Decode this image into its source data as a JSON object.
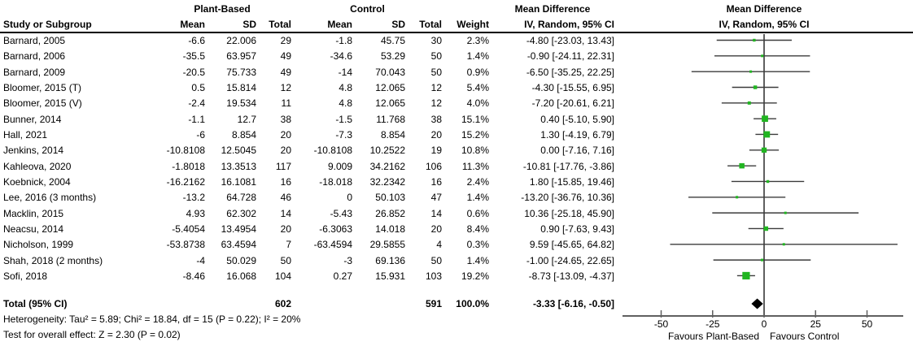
{
  "header": {
    "study_col": "Study or Subgroup",
    "group_plant_based": "Plant-Based",
    "group_control": "Control",
    "mean": "Mean",
    "sd": "SD",
    "total": "Total",
    "weight": "Weight",
    "md_text_title": "Mean Difference",
    "md_text_sub": "IV, Random, 95% CI",
    "md_plot_title": "Mean Difference",
    "md_plot_sub": "IV, Random, 95% CI"
  },
  "chart_data": {
    "type": "forest",
    "effect_measure": "Mean Difference, IV, Random, 95% CI",
    "studies": [
      {
        "name": "Barnard, 2005",
        "pb_mean": "-6.6",
        "pb_sd": "22.006",
        "pb_total": "29",
        "c_mean": "-1.8",
        "c_sd": "45.75",
        "c_total": "30",
        "weight": "2.3%",
        "ci_text": "-4.80 [-23.03, 13.43]",
        "md": -4.8,
        "ci_low": -23.03,
        "ci_high": 13.43,
        "weight_pct": 2.3
      },
      {
        "name": "Barnard, 2006",
        "pb_mean": "-35.5",
        "pb_sd": "63.957",
        "pb_total": "49",
        "c_mean": "-34.6",
        "c_sd": "53.29",
        "c_total": "50",
        "weight": "1.4%",
        "ci_text": "-0.90 [-24.11, 22.31]",
        "md": -0.9,
        "ci_low": -24.11,
        "ci_high": 22.31,
        "weight_pct": 1.4
      },
      {
        "name": "Barnard, 2009",
        "pb_mean": "-20.5",
        "pb_sd": "75.733",
        "pb_total": "49",
        "c_mean": "-14",
        "c_sd": "70.043",
        "c_total": "50",
        "weight": "0.9%",
        "ci_text": "-6.50 [-35.25, 22.25]",
        "md": -6.5,
        "ci_low": -35.25,
        "ci_high": 22.25,
        "weight_pct": 0.9
      },
      {
        "name": "Bloomer, 2015 (T)",
        "pb_mean": "0.5",
        "pb_sd": "15.814",
        "pb_total": "12",
        "c_mean": "4.8",
        "c_sd": "12.065",
        "c_total": "12",
        "weight": "5.4%",
        "ci_text": "-4.30 [-15.55, 6.95]",
        "md": -4.3,
        "ci_low": -15.55,
        "ci_high": 6.95,
        "weight_pct": 5.4
      },
      {
        "name": "Bloomer, 2015 (V)",
        "pb_mean": "-2.4",
        "pb_sd": "19.534",
        "pb_total": "11",
        "c_mean": "4.8",
        "c_sd": "12.065",
        "c_total": "12",
        "weight": "4.0%",
        "ci_text": "-7.20 [-20.61, 6.21]",
        "md": -7.2,
        "ci_low": -20.61,
        "ci_high": 6.21,
        "weight_pct": 4.0
      },
      {
        "name": "Bunner, 2014",
        "pb_mean": "-1.1",
        "pb_sd": "12.7",
        "pb_total": "38",
        "c_mean": "-1.5",
        "c_sd": "11.768",
        "c_total": "38",
        "weight": "15.1%",
        "ci_text": "0.40 [-5.10, 5.90]",
        "md": 0.4,
        "ci_low": -5.1,
        "ci_high": 5.9,
        "weight_pct": 15.1
      },
      {
        "name": "Hall, 2021",
        "pb_mean": "-6",
        "pb_sd": "8.854",
        "pb_total": "20",
        "c_mean": "-7.3",
        "c_sd": "8.854",
        "c_total": "20",
        "weight": "15.2%",
        "ci_text": "1.30 [-4.19, 6.79]",
        "md": 1.3,
        "ci_low": -4.19,
        "ci_high": 6.79,
        "weight_pct": 15.2
      },
      {
        "name": "Jenkins, 2014",
        "pb_mean": "-10.8108",
        "pb_sd": "12.5045",
        "pb_total": "20",
        "c_mean": "-10.8108",
        "c_sd": "10.2522",
        "c_total": "19",
        "weight": "10.8%",
        "ci_text": "0.00 [-7.16, 7.16]",
        "md": 0.0,
        "ci_low": -7.16,
        "ci_high": 7.16,
        "weight_pct": 10.8
      },
      {
        "name": "Kahleova, 2020",
        "pb_mean": "-1.8018",
        "pb_sd": "13.3513",
        "pb_total": "117",
        "c_mean": "9.009",
        "c_sd": "34.2162",
        "c_total": "106",
        "weight": "11.3%",
        "ci_text": "-10.81 [-17.76, -3.86]",
        "md": -10.81,
        "ci_low": -17.76,
        "ci_high": -3.86,
        "weight_pct": 11.3
      },
      {
        "name": "Koebnick, 2004",
        "pb_mean": "-16.2162",
        "pb_sd": "16.1081",
        "pb_total": "16",
        "c_mean": "-18.018",
        "c_sd": "32.2342",
        "c_total": "16",
        "weight": "2.4%",
        "ci_text": "1.80 [-15.85, 19.46]",
        "md": 1.8,
        "ci_low": -15.85,
        "ci_high": 19.46,
        "weight_pct": 2.4
      },
      {
        "name": "Lee, 2016 (3 months)",
        "pb_mean": "-13.2",
        "pb_sd": "64.728",
        "pb_total": "46",
        "c_mean": "0",
        "c_sd": "50.103",
        "c_total": "47",
        "weight": "1.4%",
        "ci_text": "-13.20 [-36.76, 10.36]",
        "md": -13.2,
        "ci_low": -36.76,
        "ci_high": 10.36,
        "weight_pct": 1.4
      },
      {
        "name": "Macklin, 2015",
        "pb_mean": "4.93",
        "pb_sd": "62.302",
        "pb_total": "14",
        "c_mean": "-5.43",
        "c_sd": "26.852",
        "c_total": "14",
        "weight": "0.6%",
        "ci_text": "10.36 [-25.18, 45.90]",
        "md": 10.36,
        "ci_low": -25.18,
        "ci_high": 45.9,
        "weight_pct": 0.6
      },
      {
        "name": "Neacsu, 2014",
        "pb_mean": "-5.4054",
        "pb_sd": "13.4954",
        "pb_total": "20",
        "c_mean": "-6.3063",
        "c_sd": "14.018",
        "c_total": "20",
        "weight": "8.4%",
        "ci_text": "0.90 [-7.63, 9.43]",
        "md": 0.9,
        "ci_low": -7.63,
        "ci_high": 9.43,
        "weight_pct": 8.4
      },
      {
        "name": "Nicholson, 1999",
        "pb_mean": "-53.8738",
        "pb_sd": "63.4594",
        "pb_total": "7",
        "c_mean": "-63.4594",
        "c_sd": "29.5855",
        "c_total": "4",
        "weight": "0.3%",
        "ci_text": "9.59 [-45.65, 64.82]",
        "md": 9.59,
        "ci_low": -45.65,
        "ci_high": 64.82,
        "weight_pct": 0.3
      },
      {
        "name": "Shah, 2018 (2 months)",
        "pb_mean": "-4",
        "pb_sd": "50.029",
        "pb_total": "50",
        "c_mean": "-3",
        "c_sd": "69.136",
        "c_total": "50",
        "weight": "1.4%",
        "ci_text": "-1.00 [-24.65, 22.65]",
        "md": -1.0,
        "ci_low": -24.65,
        "ci_high": 22.65,
        "weight_pct": 1.4
      },
      {
        "name": "Sofi, 2018",
        "pb_mean": "-8.46",
        "pb_sd": "16.068",
        "pb_total": "104",
        "c_mean": "0.27",
        "c_sd": "15.931",
        "c_total": "103",
        "weight": "19.2%",
        "ci_text": "-8.73 [-13.09, -4.37]",
        "md": -8.73,
        "ci_low": -13.09,
        "ci_high": -4.37,
        "weight_pct": 19.2
      }
    ],
    "total": {
      "label": "Total (95% CI)",
      "pb_total": "602",
      "c_total": "591",
      "weight": "100.0%",
      "ci_text": "-3.33 [-6.16, -0.50]",
      "md": -3.33,
      "ci_low": -6.16,
      "ci_high": -0.5
    },
    "axis": {
      "ticks": [
        -50,
        -25,
        0,
        25,
        50
      ],
      "tick_labels": [
        "-50",
        "-25",
        "0",
        "25",
        "50"
      ],
      "range": [
        -68.5,
        67.5
      ],
      "favours_left": "Favours Plant-Based",
      "favours_right": "Favours Control"
    },
    "footnotes": {
      "heterogeneity": "Heterogeneity: Tau² = 5.89; Chi² = 18.84, df = 15 (P = 0.22); I² = 20%",
      "overall_effect": "Test for overall effect: Z = 2.30 (P = 0.02)"
    },
    "colors": {
      "marker_green": "#21B521",
      "diamond_black": "#000000",
      "ci_line": "#3B3B3B",
      "axis_gray": "#606060"
    }
  }
}
